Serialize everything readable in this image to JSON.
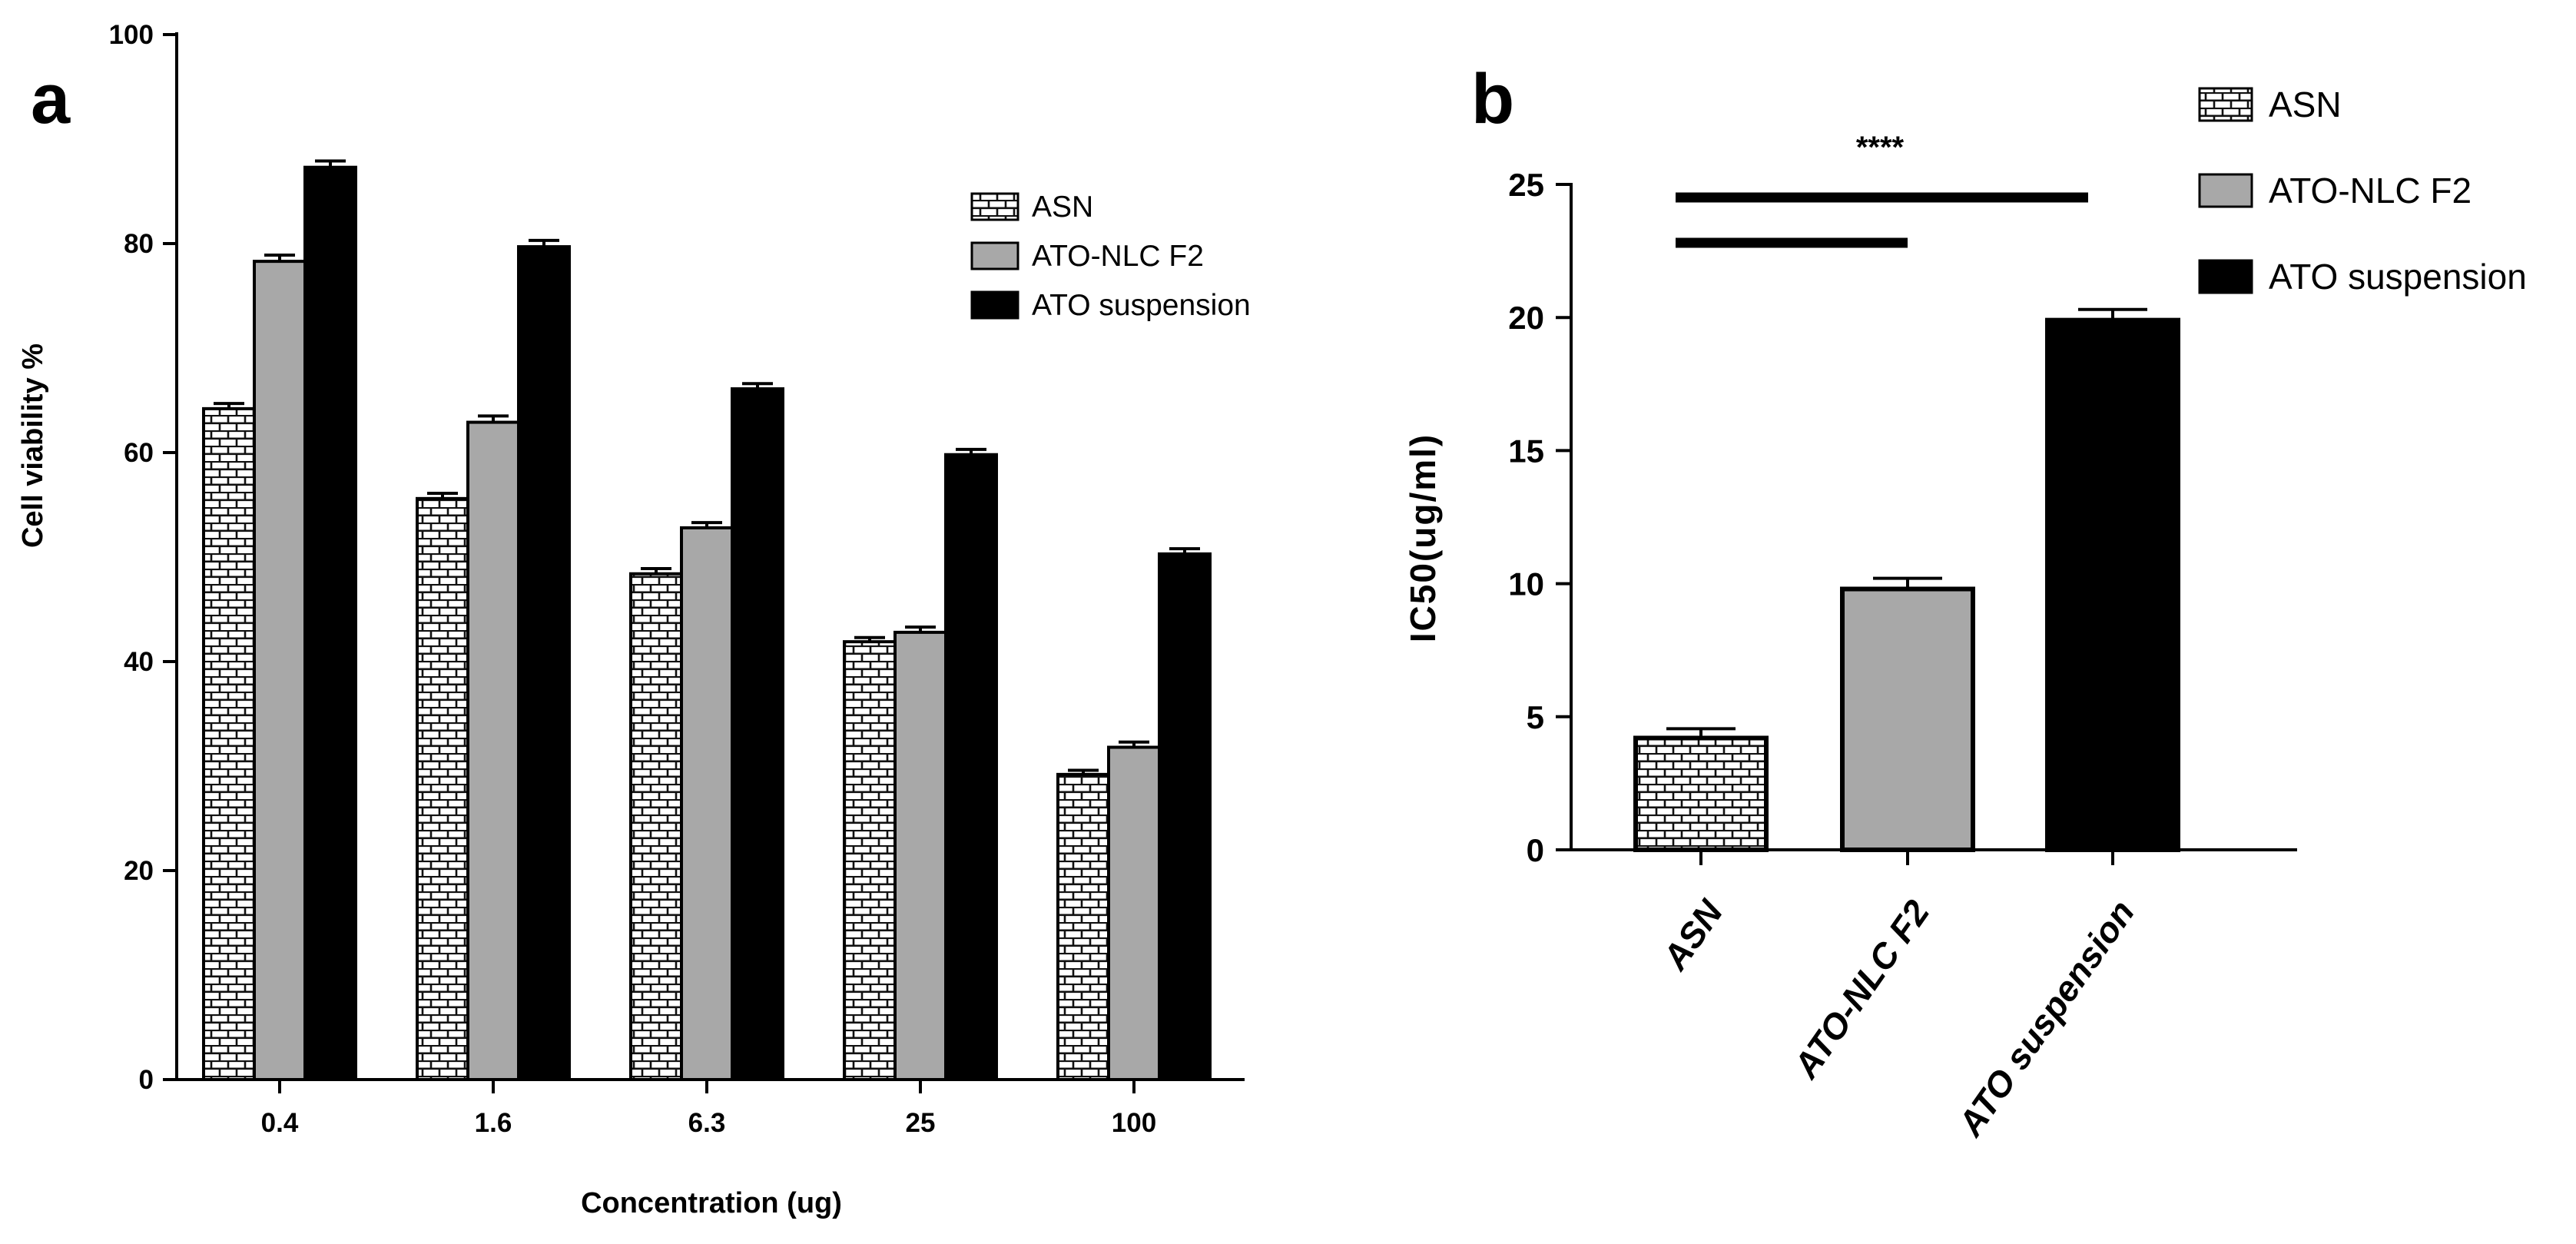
{
  "chart_data": [
    {
      "panel": "a",
      "type": "bar",
      "xlabel": "Concentration (ug)",
      "ylabel": "Cell viability %",
      "ylim": [
        0,
        100
      ],
      "yticks": [
        0,
        20,
        40,
        60,
        80,
        100
      ],
      "categories": [
        "0.4",
        "1.6",
        "6.3",
        "25",
        "100"
      ],
      "legend_position": "top-right",
      "series": [
        {
          "name": "ASN",
          "pattern": "brick",
          "values": [
            64.2,
            55.6,
            48.4,
            41.9,
            29.2
          ],
          "errors": [
            0.5,
            0.5,
            0.5,
            0.4,
            0.4
          ]
        },
        {
          "name": "ATO-NLC F2",
          "pattern": "gray",
          "values": [
            78.3,
            62.9,
            52.8,
            42.8,
            31.8
          ],
          "errors": [
            0.6,
            0.6,
            0.5,
            0.5,
            0.5
          ]
        },
        {
          "name": "ATO suspension",
          "pattern": "black",
          "values": [
            87.3,
            79.7,
            66.1,
            59.8,
            50.3
          ],
          "errors": [
            0.6,
            0.6,
            0.5,
            0.5,
            0.5
          ]
        }
      ]
    },
    {
      "panel": "b",
      "type": "bar",
      "xlabel": "",
      "ylabel": "IC50(ug/ml)",
      "ylim": [
        0,
        25
      ],
      "yticks": [
        0,
        5,
        10,
        15,
        20,
        25
      ],
      "categories": [
        "ASN",
        "ATO-NLC F2",
        "ATO suspension"
      ],
      "values": [
        4.2,
        9.8,
        19.9
      ],
      "errors": [
        0.35,
        0.4,
        0.4
      ],
      "patterns": [
        "brick",
        "gray",
        "black"
      ],
      "legend_position": "top-right",
      "legend": [
        "ASN",
        "ATO-NLC F2",
        "ATO suspension"
      ],
      "significance": "****"
    }
  ],
  "colors": {
    "gray": "#a8a8a8",
    "black": "#000000",
    "brick_fill": "#ffffff",
    "brick_line": "#000000"
  }
}
